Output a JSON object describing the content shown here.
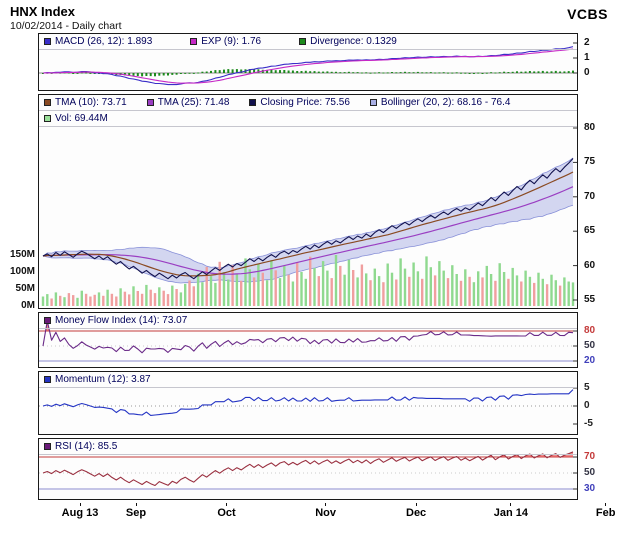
{
  "header": {
    "title": "HNX Index",
    "subtitle": "10/02/2014 - Daily chart",
    "brand": "VCBS"
  },
  "x_axis": {
    "ticks": [
      {
        "label": "Aug 13",
        "index": 0
      },
      {
        "label": "Sep",
        "index": 13
      },
      {
        "label": "Oct",
        "index": 34
      },
      {
        "label": "Nov",
        "index": 57
      },
      {
        "label": "Dec",
        "index": 78
      },
      {
        "label": "Jan 14",
        "index": 100
      },
      {
        "label": "Feb",
        "index": 122
      }
    ]
  },
  "panels": {
    "macd": {
      "legend": [
        {
          "label": "MACD (26, 12): 1.893",
          "color": "#3a2ec8"
        },
        {
          "label": "EXP (9): 1.76",
          "color": "#c629c6"
        },
        {
          "label": "Divergence: 0.1329",
          "color": "#1c8a1c"
        }
      ]
    },
    "price": {
      "legend": [
        {
          "label": "TMA (10): 73.71",
          "color": "#8a4a22"
        },
        {
          "label": "TMA (25): 71.48",
          "color": "#9a3ec2"
        },
        {
          "label": "Closing Price: 75.56",
          "color": "#12124e"
        },
        {
          "label": "Bollinger (20, 2): 68.16 - 76.4",
          "color": "#a9afe4"
        }
      ],
      "legend2": [
        {
          "label": "Vol: 69.44M",
          "color": "#9ae09a"
        }
      ]
    },
    "mfi": {
      "legend": [
        {
          "label": "Money Flow Index (14): 73.07",
          "color": "#6a1a78"
        }
      ]
    },
    "momentum": {
      "legend": [
        {
          "label": "Momentum (12): 3.87",
          "color": "#2434c4"
        }
      ]
    },
    "rsi": {
      "legend": [
        {
          "label": "RSI (14): 85.5",
          "color": "#6a1a78"
        }
      ]
    }
  },
  "chart_data": [
    {
      "id": "macd",
      "panel": "MACD",
      "type": "line",
      "params": {
        "slow": 26,
        "fast": 12,
        "signal": 9
      },
      "series": [
        {
          "name": "MACD (26, 12)",
          "current": 1.893,
          "color": "#3a2ec8"
        },
        {
          "name": "EXP (9)",
          "current": 1.76,
          "color": "#c629c6"
        },
        {
          "name": "Divergence",
          "current": 0.1329,
          "color": "#1c8a1c",
          "style": "bar"
        }
      ],
      "yticks": [
        2,
        1,
        0
      ],
      "ylim": [
        -1.1,
        2.6
      ]
    },
    {
      "id": "price",
      "panel": "HNX Index price and volume",
      "type": "line+bar",
      "close": [
        61.4,
        61.7,
        61.3,
        61.9,
        61.5,
        62.0,
        61.6,
        61.2,
        61.7,
        62.1,
        61.8,
        61.4,
        61.0,
        61.4,
        60.9,
        61.3,
        60.7,
        60.2,
        60.6,
        60.0,
        59.5,
        59.9,
        59.4,
        58.9,
        59.3,
        58.8,
        58.4,
        58.9,
        58.5,
        58.1,
        58.6,
        58.2,
        58.7,
        59.0,
        58.5,
        58.1,
        58.6,
        59.1,
        58.7,
        59.2,
        59.7,
        59.3,
        59.8,
        60.2,
        59.8,
        60.3,
        60.0,
        60.5,
        61.0,
        60.6,
        61.1,
        60.7,
        61.2,
        61.6,
        61.2,
        61.8,
        62.1,
        61.7,
        62.2,
        61.9,
        62.4,
        62.8,
        62.4,
        63.0,
        62.6,
        63.1,
        63.5,
        63.1,
        63.6,
        63.3,
        63.8,
        64.2,
        63.8,
        64.3,
        64.0,
        64.6,
        64.2,
        64.8,
        65.2,
        64.8,
        65.3,
        65.8,
        65.4,
        65.9,
        66.3,
        65.9,
        66.4,
        66.8,
        66.4,
        66.9,
        67.3,
        66.9,
        67.4,
        67.8,
        67.4,
        67.9,
        68.3,
        67.9,
        68.4,
        68.1,
        68.6,
        69.1,
        68.7,
        69.3,
        69.9,
        69.4,
        70.1,
        70.7,
        70.2,
        70.9,
        71.5,
        71.0,
        71.8,
        72.4,
        71.9,
        72.6,
        73.2,
        72.7,
        73.5,
        74.1,
        73.6,
        74.3,
        74.9,
        75.56
      ],
      "volume_millions": [
        28,
        35,
        22,
        40,
        30,
        26,
        38,
        32,
        24,
        45,
        36,
        28,
        33,
        40,
        30,
        48,
        36,
        28,
        52,
        42,
        34,
        58,
        44,
        36,
        62,
        48,
        38,
        55,
        45,
        35,
        60,
        50,
        40,
        65,
        75,
        58,
        95,
        70,
        115,
        88,
        68,
        130,
        100,
        78,
        120,
        95,
        74,
        140,
        108,
        84,
        125,
        98,
        76,
        135,
        105,
        82,
        118,
        92,
        72,
        128,
        100,
        80,
        145,
        112,
        88,
        132,
        104,
        82,
        150,
        118,
        92,
        136,
        106,
        84,
        122,
        96,
        76,
        110,
        88,
        70,
        125,
        98,
        78,
        140,
        110,
        86,
        128,
        102,
        80,
        146,
        114,
        90,
        132,
        104,
        82,
        120,
        94,
        74,
        108,
        86,
        70,
        102,
        84,
        118,
        94,
        74,
        126,
        100,
        80,
        112,
        90,
        72,
        104,
        86,
        68,
        98,
        80,
        64,
        92,
        76,
        60,
        84,
        72,
        69.44
      ],
      "series": [
        {
          "name": "Closing Price",
          "current": 75.56,
          "color": "#12124e"
        },
        {
          "name": "TMA (10)",
          "current": 73.71,
          "color": "#8a4a22"
        },
        {
          "name": "TMA (25)",
          "current": 71.48,
          "color": "#9a3ec2"
        },
        {
          "name": "Bollinger (20, 2)",
          "current": "68.16 - 76.4",
          "color": "#a9afe4"
        },
        {
          "name": "Vol",
          "current": "69.44M",
          "up_color": "#8fd98f",
          "down_color": "#f09f9f"
        }
      ],
      "yticks": [
        80,
        75,
        70,
        65,
        60,
        55
      ],
      "ylim": [
        55,
        80
      ],
      "volume_yticks": [
        {
          "value": 150,
          "label": "150M"
        },
        {
          "value": 100,
          "label": "100M"
        },
        {
          "value": 50,
          "label": "50M"
        },
        {
          "value": 0,
          "label": "0M"
        }
      ],
      "volume_ylim": [
        0,
        150
      ]
    },
    {
      "id": "mfi",
      "panel": "Money Flow Index",
      "type": "line",
      "period": 14,
      "current": 73.07,
      "color": "#6a2a88",
      "overbought": 80,
      "oversold": 20,
      "yticks": [
        {
          "value": 80,
          "color": "#c43a3a"
        },
        {
          "value": 50,
          "color": "#333344"
        },
        {
          "value": 20,
          "color": "#4040bb"
        }
      ],
      "ylim": [
        10,
        95
      ]
    },
    {
      "id": "momentum",
      "panel": "Momentum",
      "type": "line",
      "period": 12,
      "current": 3.87,
      "color": "#2434c4",
      "yticks": [
        {
          "value": 5,
          "color": "#222222"
        },
        {
          "value": 0,
          "color": "#222222"
        },
        {
          "value": -5,
          "color": "#222222"
        }
      ],
      "ylim": [
        -7.5,
        7.5
      ]
    },
    {
      "id": "rsi",
      "panel": "RSI",
      "type": "line",
      "period": 14,
      "current": 85.5,
      "color": "#9a3040",
      "overbought": 70,
      "oversold": 30,
      "fill_above_overbought": "#e84040",
      "yticks": [
        {
          "value": 70,
          "color": "#c43a3a"
        },
        {
          "value": 50,
          "color": "#333344"
        },
        {
          "value": 30,
          "color": "#4040bb"
        }
      ],
      "ylim": [
        12,
        92
      ]
    }
  ]
}
